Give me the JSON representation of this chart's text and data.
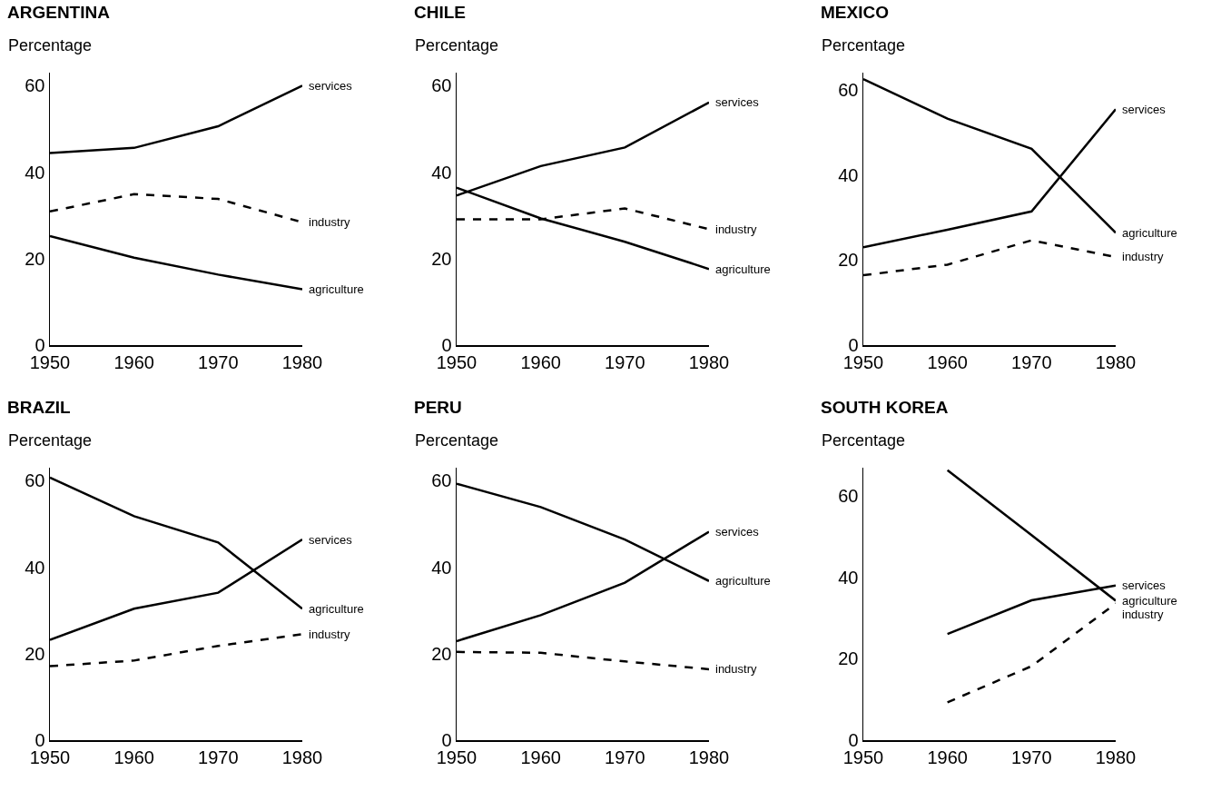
{
  "chart_data": [
    {
      "type": "line",
      "title": "ARGENTINA",
      "ylabel": "Percentage",
      "x": [
        1950,
        1960,
        1970,
        1980
      ],
      "xlim": [
        1950,
        1980
      ],
      "ylim": [
        0,
        63
      ],
      "xticks": [
        1950,
        1960,
        1970,
        1980
      ],
      "yticks": [
        0,
        20,
        40,
        60
      ],
      "grid": false,
      "legend": false,
      "series": [
        {
          "name": "services",
          "color": "#000000",
          "line_style": "solid",
          "values": [
            44.4,
            45.6,
            50.6,
            60
          ]
        },
        {
          "name": "industry",
          "color": "#000000",
          "line_style": "dashed",
          "values": [
            30.9,
            34.9,
            33.8,
            28.4
          ]
        },
        {
          "name": "agriculture",
          "color": "#000000",
          "line_style": "solid",
          "values": [
            25.2,
            20.2,
            16.3,
            12.9
          ]
        }
      ]
    },
    {
      "type": "line",
      "title": "CHILE",
      "ylabel": "Percentage",
      "x": [
        1950,
        1960,
        1970,
        1980
      ],
      "xlim": [
        1950,
        1980
      ],
      "ylim": [
        0,
        63
      ],
      "xticks": [
        1950,
        1960,
        1970,
        1980
      ],
      "yticks": [
        0,
        20,
        40,
        60
      ],
      "grid": false,
      "legend": false,
      "series": [
        {
          "name": "services",
          "color": "#000000",
          "line_style": "solid",
          "values": [
            34.6,
            41.4,
            45.7,
            56.1
          ]
        },
        {
          "name": "industry",
          "color": "#000000",
          "line_style": "dashed",
          "values": [
            29.1,
            29.1,
            31.6,
            26.8
          ]
        },
        {
          "name": "agriculture",
          "color": "#000000",
          "line_style": "solid",
          "values": [
            36.4,
            29.3,
            23.9,
            17.6
          ]
        }
      ]
    },
    {
      "type": "line",
      "title": "MEXICO",
      "ylabel": "Percentage",
      "x": [
        1950,
        1960,
        1970,
        1980
      ],
      "xlim": [
        1950,
        1980
      ],
      "ylim": [
        0,
        64
      ],
      "xticks": [
        1950,
        1960,
        1970,
        1980
      ],
      "yticks": [
        0,
        20,
        40,
        60
      ],
      "grid": false,
      "legend": false,
      "series": [
        {
          "name": "services",
          "color": "#000000",
          "line_style": "solid",
          "values": [
            23,
            27.1,
            31.4,
            55.4
          ]
        },
        {
          "name": "agriculture",
          "color": "#000000",
          "line_style": "solid",
          "values": [
            62.5,
            53.2,
            46.1,
            26.4
          ]
        },
        {
          "name": "industry",
          "color": "#000000",
          "line_style": "dashed",
          "values": [
            16.4,
            18.9,
            24.6,
            20.7
          ]
        }
      ]
    },
    {
      "type": "line",
      "title": "BRAZIL",
      "ylabel": "Percentage",
      "x": [
        1950,
        1960,
        1970,
        1980
      ],
      "xlim": [
        1950,
        1980
      ],
      "ylim": [
        0,
        63
      ],
      "xticks": [
        1950,
        1960,
        1970,
        1980
      ],
      "yticks": [
        0,
        20,
        40,
        60
      ],
      "grid": false,
      "legend": false,
      "series": [
        {
          "name": "services",
          "color": "#000000",
          "line_style": "solid",
          "values": [
            23.2,
            30.4,
            34.1,
            46.4
          ]
        },
        {
          "name": "agriculture",
          "color": "#000000",
          "line_style": "solid",
          "values": [
            60.7,
            51.8,
            45.7,
            30.4
          ]
        },
        {
          "name": "industry",
          "color": "#000000",
          "line_style": "dashed",
          "values": [
            17.1,
            18.4,
            21.8,
            24.5
          ]
        }
      ]
    },
    {
      "type": "line",
      "title": "PERU",
      "ylabel": "Percentage",
      "x": [
        1950,
        1960,
        1970,
        1980
      ],
      "xlim": [
        1950,
        1980
      ],
      "ylim": [
        0,
        63
      ],
      "xticks": [
        1950,
        1960,
        1970,
        1980
      ],
      "yticks": [
        0,
        20,
        40,
        60
      ],
      "grid": false,
      "legend": false,
      "series": [
        {
          "name": "services",
          "color": "#000000",
          "line_style": "solid",
          "values": [
            22.9,
            28.9,
            36.4,
            48.2
          ]
        },
        {
          "name": "agriculture",
          "color": "#000000",
          "line_style": "solid",
          "values": [
            59.3,
            53.9,
            46.4,
            36.8
          ]
        },
        {
          "name": "industry",
          "color": "#000000",
          "line_style": "dashed",
          "values": [
            20.4,
            20.2,
            18.2,
            16.4
          ]
        }
      ]
    },
    {
      "type": "line",
      "title": "SOUTH KOREA",
      "ylabel": "Percentage",
      "xlim": [
        1950,
        1980
      ],
      "ylim": [
        0,
        67
      ],
      "xticks": [
        1950,
        1960,
        1970,
        1980
      ],
      "yticks": [
        0,
        20,
        40,
        60
      ],
      "grid": false,
      "legend": false,
      "series": [
        {
          "name": "services",
          "color": "#000000",
          "line_style": "solid",
          "x": [
            1960,
            1970,
            1980
          ],
          "values": [
            26.1,
            34.4,
            38
          ]
        },
        {
          "name": "agriculture",
          "color": "#000000",
          "line_style": "solid",
          "x": [
            1960,
            1970,
            1980
          ],
          "values": [
            66.4,
            50.4,
            34.3
          ]
        },
        {
          "name": "industry",
          "color": "#000000",
          "line_style": "dashed",
          "x": [
            1960,
            1970,
            1980
          ],
          "values": [
            9.3,
            18.2,
            33.6
          ]
        }
      ]
    }
  ]
}
